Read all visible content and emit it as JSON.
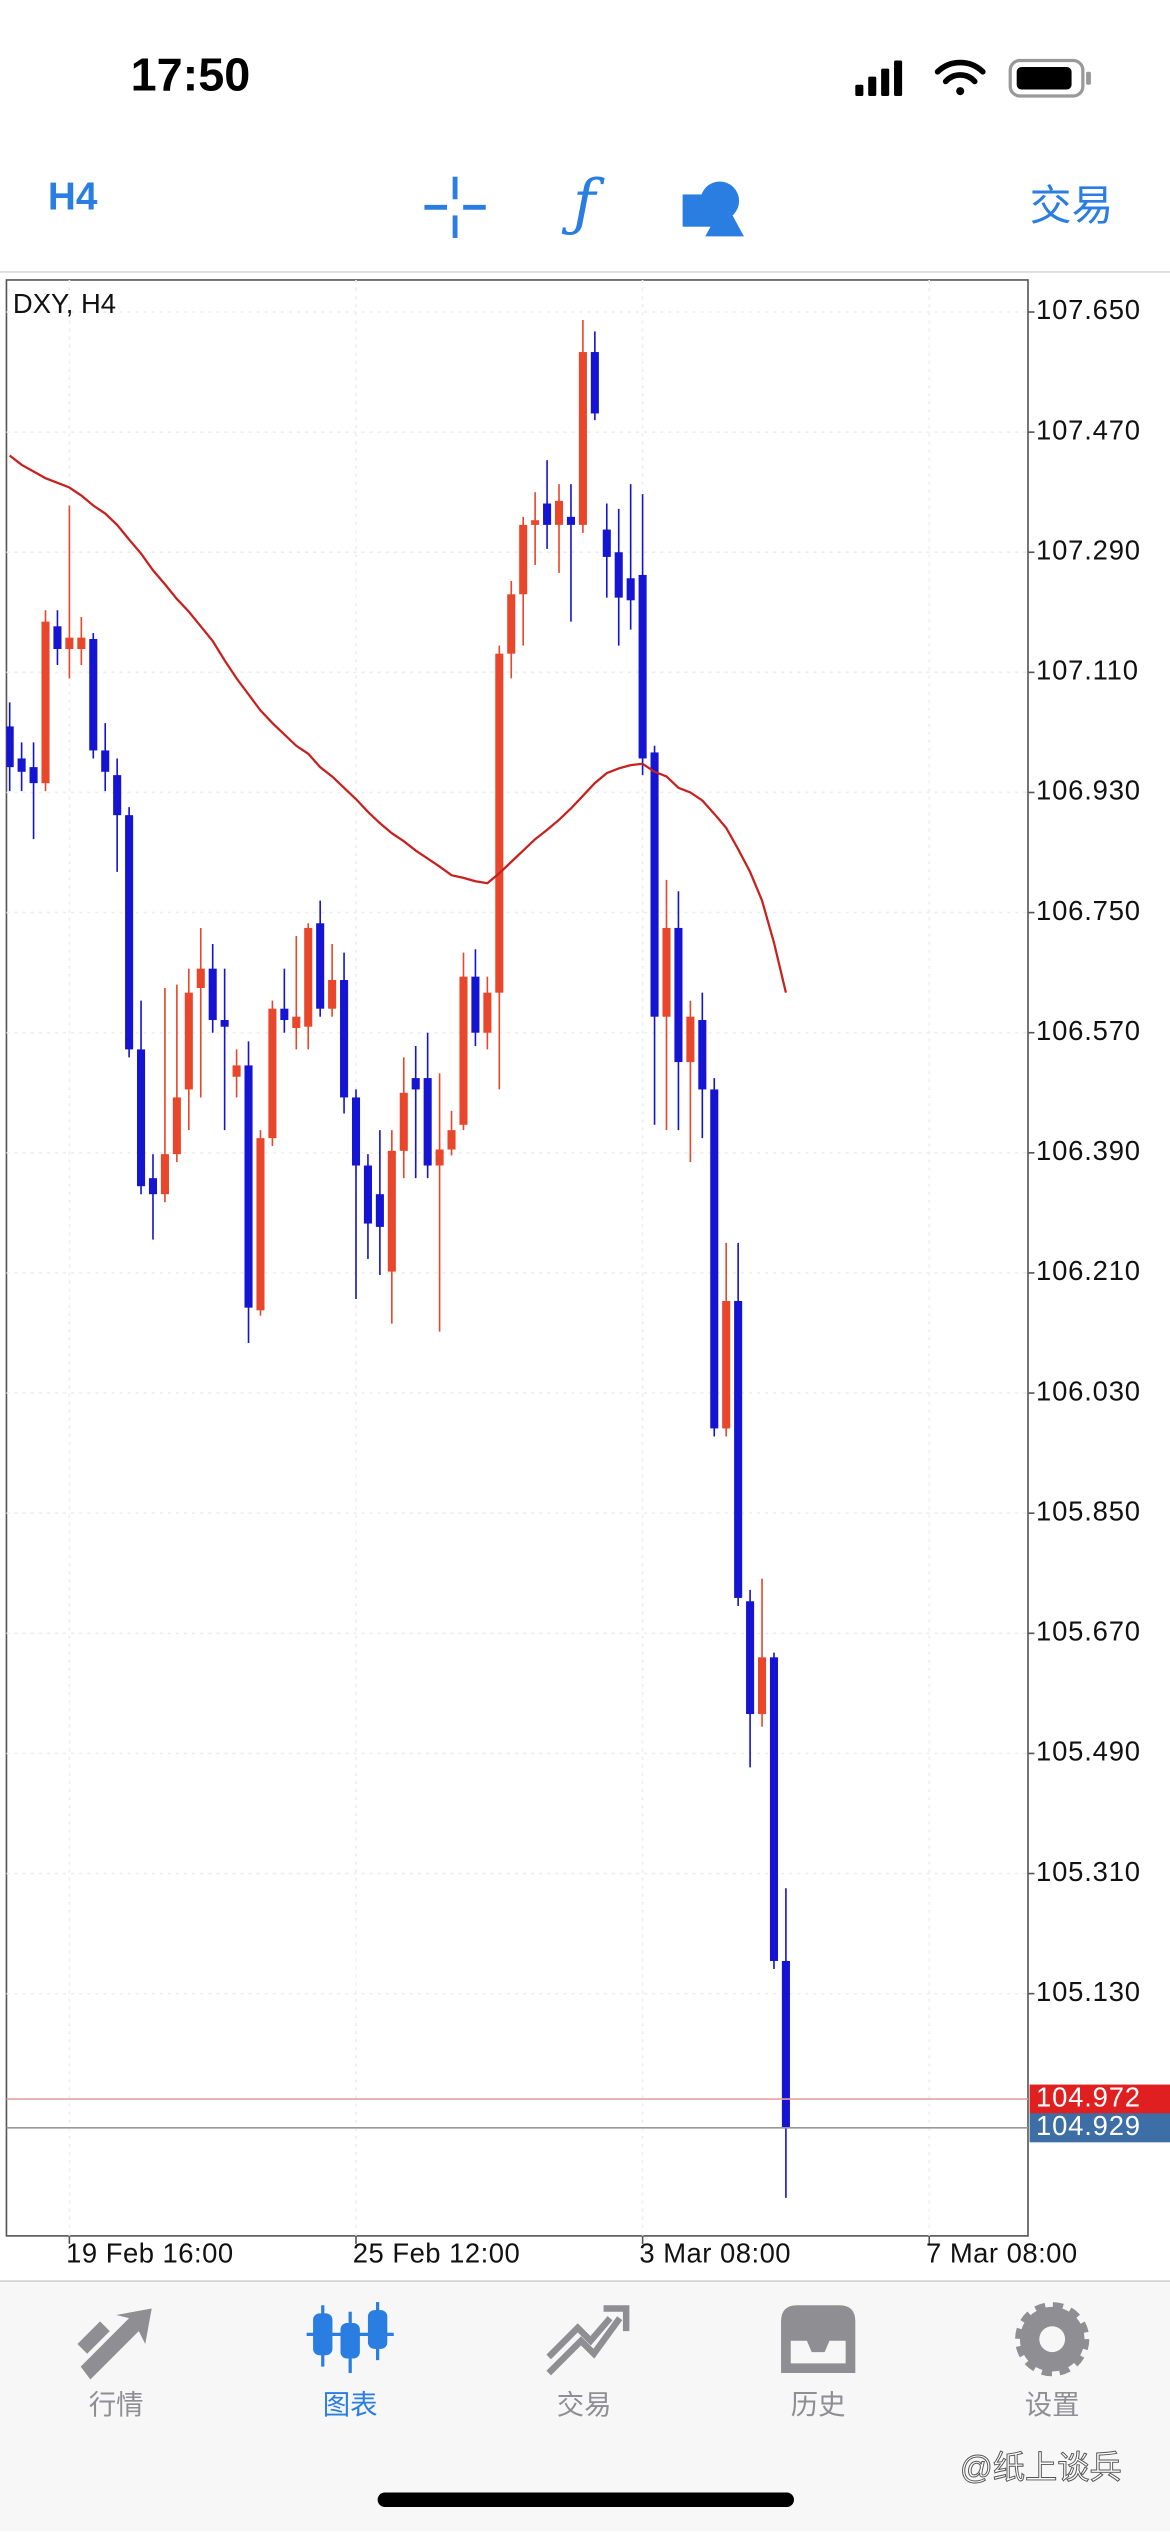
{
  "status_bar": {
    "time": "17:50"
  },
  "toolbar": {
    "timeframe": "H4",
    "trade": "交易"
  },
  "chart_data": {
    "type": "candlestick",
    "title": "DXY, H4",
    "categories": [
      null,
      null,
      null,
      null,
      null,
      "19 Feb 16:00",
      null,
      null,
      null,
      null,
      null,
      null,
      null,
      null,
      null,
      null,
      null,
      null,
      null,
      null,
      null,
      null,
      null,
      null,
      null,
      null,
      null,
      null,
      null,
      "25 Feb 12:00",
      null,
      null,
      null,
      null,
      null,
      null,
      null,
      null,
      null,
      null,
      null,
      null,
      null,
      null,
      null,
      null,
      null,
      null,
      null,
      null,
      null,
      null,
      null,
      "3 Mar 08:00",
      null,
      null,
      null,
      null,
      null,
      null,
      null,
      null,
      null,
      null,
      null,
      null,
      null,
      null,
      null,
      null,
      null,
      null,
      null,
      null,
      null,
      null,
      null,
      "7 Mar 08:00",
      null,
      null,
      null,
      null,
      null,
      null,
      null,
      null
    ],
    "open": [
      107.029,
      106.981,
      106.968,
      106.944,
      107.179,
      107.145,
      107.145,
      107.16,
      106.993,
      106.956,
      106.896,
      106.545,
      106.352,
      106.328,
      106.388,
      106.485,
      106.637,
      106.666,
      106.589,
      106.504,
      106.521,
      106.154,
      106.412,
      106.606,
      106.577,
      106.579,
      106.734,
      106.606,
      106.649,
      106.473,
      106.371,
      106.328,
      106.212,
      106.393,
      106.502,
      106.502,
      106.371,
      106.395,
      106.432,
      106.654,
      106.57,
      106.63,
      107.138,
      107.227,
      107.331,
      107.363,
      107.331,
      107.343,
      107.331,
      107.59,
      107.324,
      107.29,
      107.251,
      107.256,
      106.99,
      106.594,
      106.727,
      106.526,
      106.589,
      106.485,
      105.977,
      106.168,
      105.718,
      105.549,
      105.634,
      105.179,
      null,
      null,
      null,
      null,
      null,
      null,
      null,
      null,
      null,
      null,
      null,
      null,
      null,
      null,
      null,
      null,
      null,
      null,
      null,
      null
    ],
    "high": [
      107.065,
      107.005,
      107.005,
      107.203,
      107.203,
      107.36,
      107.193,
      107.169,
      107.034,
      106.981,
      106.908,
      106.618,
      106.388,
      106.637,
      106.642,
      106.666,
      106.727,
      106.703,
      106.666,
      106.545,
      106.557,
      106.424,
      106.618,
      106.666,
      106.715,
      106.734,
      106.768,
      106.703,
      106.69,
      106.485,
      106.388,
      106.424,
      106.424,
      106.533,
      106.55,
      106.57,
      106.509,
      106.453,
      106.69,
      106.695,
      106.654,
      107.15,
      107.247,
      107.343,
      107.38,
      107.428,
      107.392,
      107.392,
      107.638,
      107.621,
      107.363,
      107.355,
      107.392,
      107.377,
      107.0,
      106.799,
      106.782,
      106.618,
      106.63,
      106.502,
      106.255,
      106.255,
      105.735,
      105.752,
      105.641,
      105.288,
      null,
      null,
      null,
      null,
      null,
      null,
      null,
      null,
      null,
      null,
      null,
      null,
      null,
      null,
      null,
      null,
      null,
      null,
      null,
      null
    ],
    "low": [
      106.932,
      106.932,
      106.86,
      106.932,
      107.121,
      107.101,
      107.121,
      106.981,
      106.932,
      106.811,
      106.533,
      106.328,
      106.26,
      106.316,
      106.376,
      106.424,
      106.473,
      106.57,
      106.424,
      106.473,
      106.105,
      106.146,
      106.4,
      106.57,
      106.545,
      106.545,
      106.594,
      106.594,
      106.449,
      106.171,
      106.231,
      106.207,
      106.134,
      106.352,
      106.352,
      106.352,
      106.122,
      106.386,
      106.424,
      106.55,
      106.545,
      106.485,
      107.101,
      107.15,
      107.271,
      107.295,
      107.259,
      107.186,
      107.319,
      107.488,
      107.222,
      107.15,
      107.174,
      106.956,
      106.432,
      106.424,
      106.424,
      106.376,
      106.412,
      105.965,
      105.965,
      105.711,
      105.469,
      105.53,
      105.167,
      104.824,
      null,
      null,
      null,
      null,
      null,
      null,
      null,
      null,
      null,
      null,
      null,
      null,
      null,
      null,
      null,
      null,
      null,
      null,
      null,
      null
    ],
    "close": [
      106.968,
      106.961,
      106.944,
      107.186,
      107.145,
      107.162,
      107.162,
      106.993,
      106.961,
      106.896,
      106.545,
      106.34,
      106.328,
      106.388,
      106.473,
      106.63,
      106.666,
      106.589,
      106.579,
      106.521,
      106.158,
      106.412,
      106.606,
      106.589,
      106.594,
      106.727,
      106.606,
      106.649,
      106.473,
      106.371,
      106.284,
      106.279,
      106.393,
      106.48,
      106.485,
      106.371,
      106.395,
      106.424,
      106.654,
      106.57,
      106.63,
      107.138,
      107.227,
      107.331,
      107.338,
      107.331,
      107.367,
      107.331,
      107.59,
      107.498,
      107.283,
      107.222,
      107.218,
      106.981,
      106.594,
      106.727,
      106.526,
      106.594,
      106.485,
      105.977,
      106.168,
      105.723,
      105.549,
      105.634,
      105.179,
      104.929,
      null,
      null,
      null,
      null,
      null,
      null,
      null,
      null,
      null,
      null,
      null,
      null,
      null,
      null,
      null,
      null,
      null,
      null,
      null,
      null
    ],
    "up_color": "#e8472b",
    "down_color": "#1414d2",
    "moving_average": {
      "color": "#c8201e",
      "values": [
        107.435,
        107.421,
        107.411,
        107.401,
        107.394,
        107.387,
        107.375,
        107.36,
        107.348,
        107.331,
        107.309,
        107.288,
        107.263,
        107.242,
        107.22,
        107.201,
        107.179,
        107.157,
        107.128,
        107.101,
        107.077,
        107.053,
        107.034,
        107.017,
        107.0,
        106.988,
        106.968,
        106.954,
        106.937,
        106.92,
        106.901,
        106.884,
        106.869,
        106.857,
        106.843,
        106.831,
        106.819,
        106.806,
        106.802,
        106.797,
        106.794,
        106.809,
        106.826,
        106.843,
        106.86,
        106.874,
        106.889,
        106.906,
        106.925,
        106.944,
        106.959,
        106.966,
        106.971,
        106.973,
        106.961,
        106.954,
        106.937,
        106.93,
        106.918,
        106.898,
        106.877,
        106.845,
        106.811,
        106.768,
        106.705,
        106.63,
        null,
        null,
        null,
        null,
        null,
        null,
        null,
        null,
        null,
        null,
        null,
        null,
        null,
        null,
        null,
        null,
        null,
        null,
        null,
        null
      ]
    },
    "ylim": [
      104.767,
      107.698
    ],
    "yticks": [
      {
        "value": 107.65,
        "label": "107.650"
      },
      {
        "value": 107.47,
        "label": "107.470"
      },
      {
        "value": 107.29,
        "label": "107.290"
      },
      {
        "value": 107.11,
        "label": "107.110"
      },
      {
        "value": 106.93,
        "label": "106.930"
      },
      {
        "value": 106.75,
        "label": "106.750"
      },
      {
        "value": 106.57,
        "label": "106.570"
      },
      {
        "value": 106.39,
        "label": "106.390"
      },
      {
        "value": 106.21,
        "label": "106.210"
      },
      {
        "value": 106.03,
        "label": "106.030"
      },
      {
        "value": 105.85,
        "label": "105.850"
      },
      {
        "value": 105.67,
        "label": "105.670"
      },
      {
        "value": 105.49,
        "label": "105.490"
      },
      {
        "value": 105.31,
        "label": "105.310"
      },
      {
        "value": 105.13,
        "label": "105.130"
      }
    ],
    "price_lines": [
      {
        "value": 104.972,
        "color": "#e02020"
      },
      {
        "value": 104.929,
        "color": "#3d6ea5"
      }
    ],
    "grid": true
  },
  "tab_bar": {
    "tabs": [
      "行情",
      "图表",
      "交易",
      "历史",
      "设置"
    ],
    "active": 1
  },
  "watermark": "@纸上谈兵"
}
